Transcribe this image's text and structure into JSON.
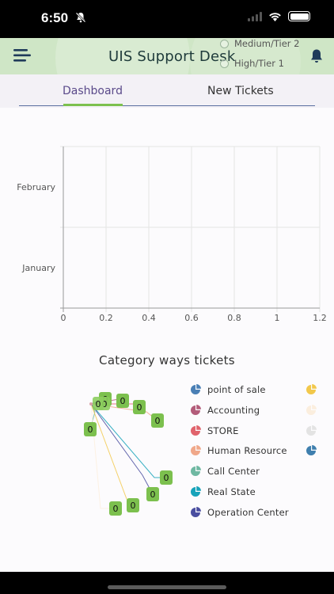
{
  "status_bar": {
    "time": "6:50"
  },
  "header": {
    "title": "UIS Support Desk",
    "tiers": [
      "Medium/Tier 2",
      "High/Tier 1"
    ]
  },
  "tabs": [
    {
      "label": "Dashboard",
      "active": true
    },
    {
      "label": "New Tickets",
      "active": false
    }
  ],
  "colors": {
    "header_bg": "#cfe6c6",
    "active_tab_text": "#5a4a8a",
    "active_tab_indicator": "#7cc04e",
    "badge_green": "#7cc04e"
  },
  "chart_data": {
    "type": "bar",
    "orientation": "horizontal",
    "categories": [
      "February",
      "January"
    ],
    "values": [
      0,
      0
    ],
    "xlim": [
      0,
      1.2
    ],
    "xticks": [
      "0",
      "0.2",
      "0.4",
      "0.6",
      "0.8",
      "1",
      "1.2"
    ],
    "grid": true
  },
  "category_section": {
    "title": "Category ways tickets",
    "slice_values": [
      "0",
      "0",
      "0",
      "0",
      "0",
      "0",
      "0",
      "0",
      "0",
      "0",
      "0"
    ],
    "legend": [
      {
        "label": "point of sale",
        "color": "#4a7fb5",
        "extra_color": "#f2c84b"
      },
      {
        "label": "Accounting",
        "color": "#b35c7a",
        "extra_color": "#fbeede"
      },
      {
        "label": "STORE",
        "color": "#e0636c",
        "extra_color": "#e3e3e3"
      },
      {
        "label": "Human Resource",
        "color": "#f0a88a",
        "extra_color": "#3f7fae"
      },
      {
        "label": "Call Center",
        "color": "#6fb8a2",
        "extra_color": null
      },
      {
        "label": "Real State",
        "color": "#17a3ba",
        "extra_color": null
      },
      {
        "label": "Operation Center",
        "color": "#4a4ea0",
        "extra_color": null
      }
    ]
  }
}
